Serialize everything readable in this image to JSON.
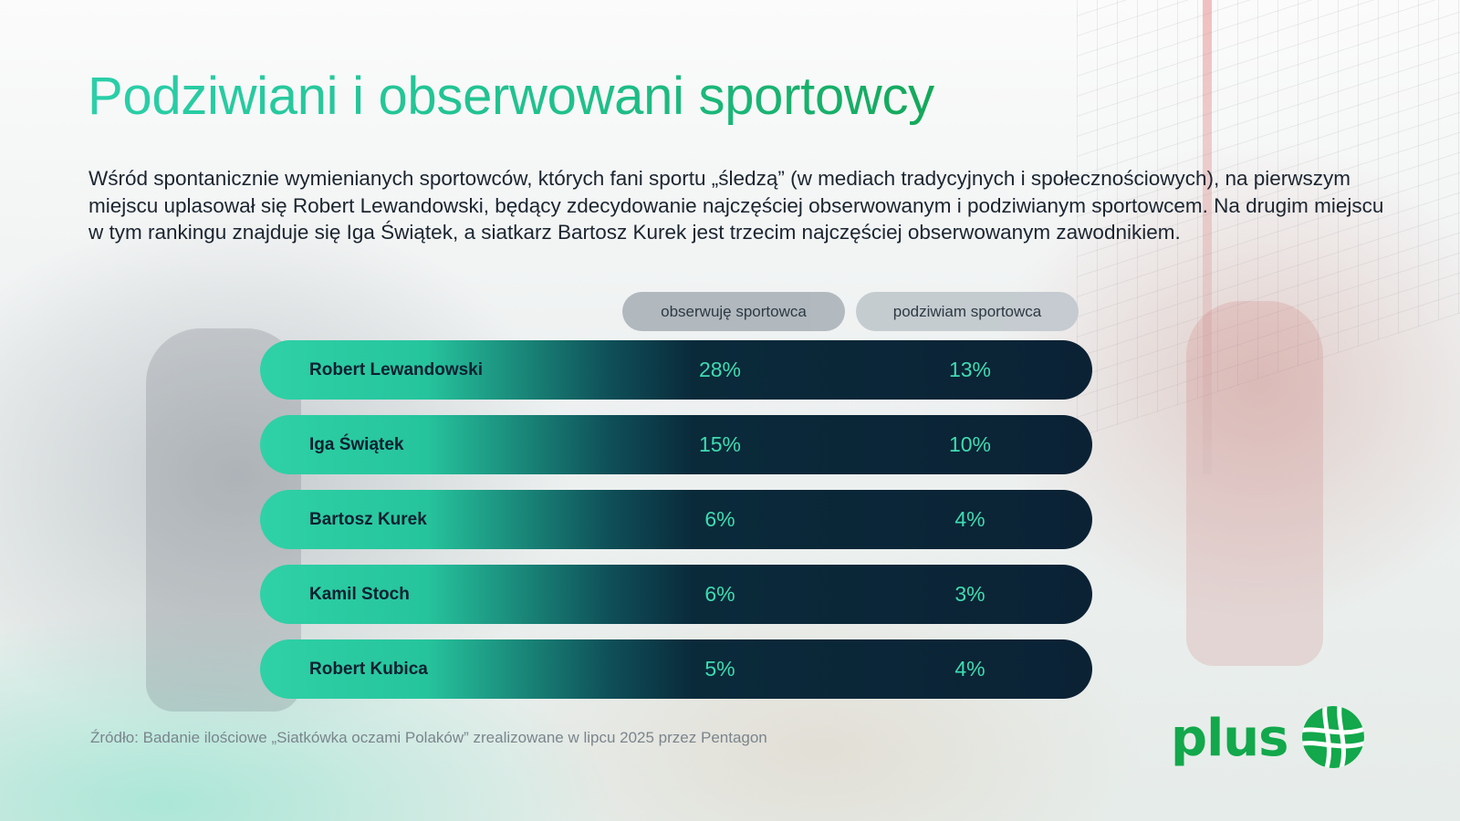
{
  "title": "Podziwiani i obserwowani sportowcy",
  "intro": "Wśród spontanicznie wymienianych sportowców, których fani sportu „śledzą” (w mediach tradycyjnych i społecznościowych), na pierwszym miejscu uplasował się Robert Lewandowski, będący zdecydowanie najczęściej obserwowanym i podziwianym sportowcem. Na drugim miejscu w tym rankingu znajduje się Iga Świątek, a siatkarz Bartosz Kurek jest trzecim najczęściej obserwowanym zawodnikiem.",
  "columns": {
    "observe": "obserwuję sportowca",
    "admire": "podziwiam sportowca"
  },
  "rows": [
    {
      "name": "Robert Lewandowski",
      "observe": "28%",
      "admire": "13%"
    },
    {
      "name": "Iga Świątek",
      "observe": "15%",
      "admire": "10%"
    },
    {
      "name": "Bartosz Kurek",
      "observe": "6%",
      "admire": "4%"
    },
    {
      "name": "Kamil Stoch",
      "observe": "6%",
      "admire": "3%"
    },
    {
      "name": "Robert Kubica",
      "observe": "5%",
      "admire": "4%"
    }
  ],
  "source": "Źródło: Badanie ilościowe „Siatkówka oczami Polaków” zrealizowane w lipcu 2025 przez Pentagon",
  "logo": {
    "text": "plus",
    "icon": "plus-logo-mark-icon",
    "color": "#12a84b"
  },
  "colors": {
    "accent": "#2bcfa9",
    "row_dark": "#0b2235",
    "value": "#3fdcb0"
  }
}
